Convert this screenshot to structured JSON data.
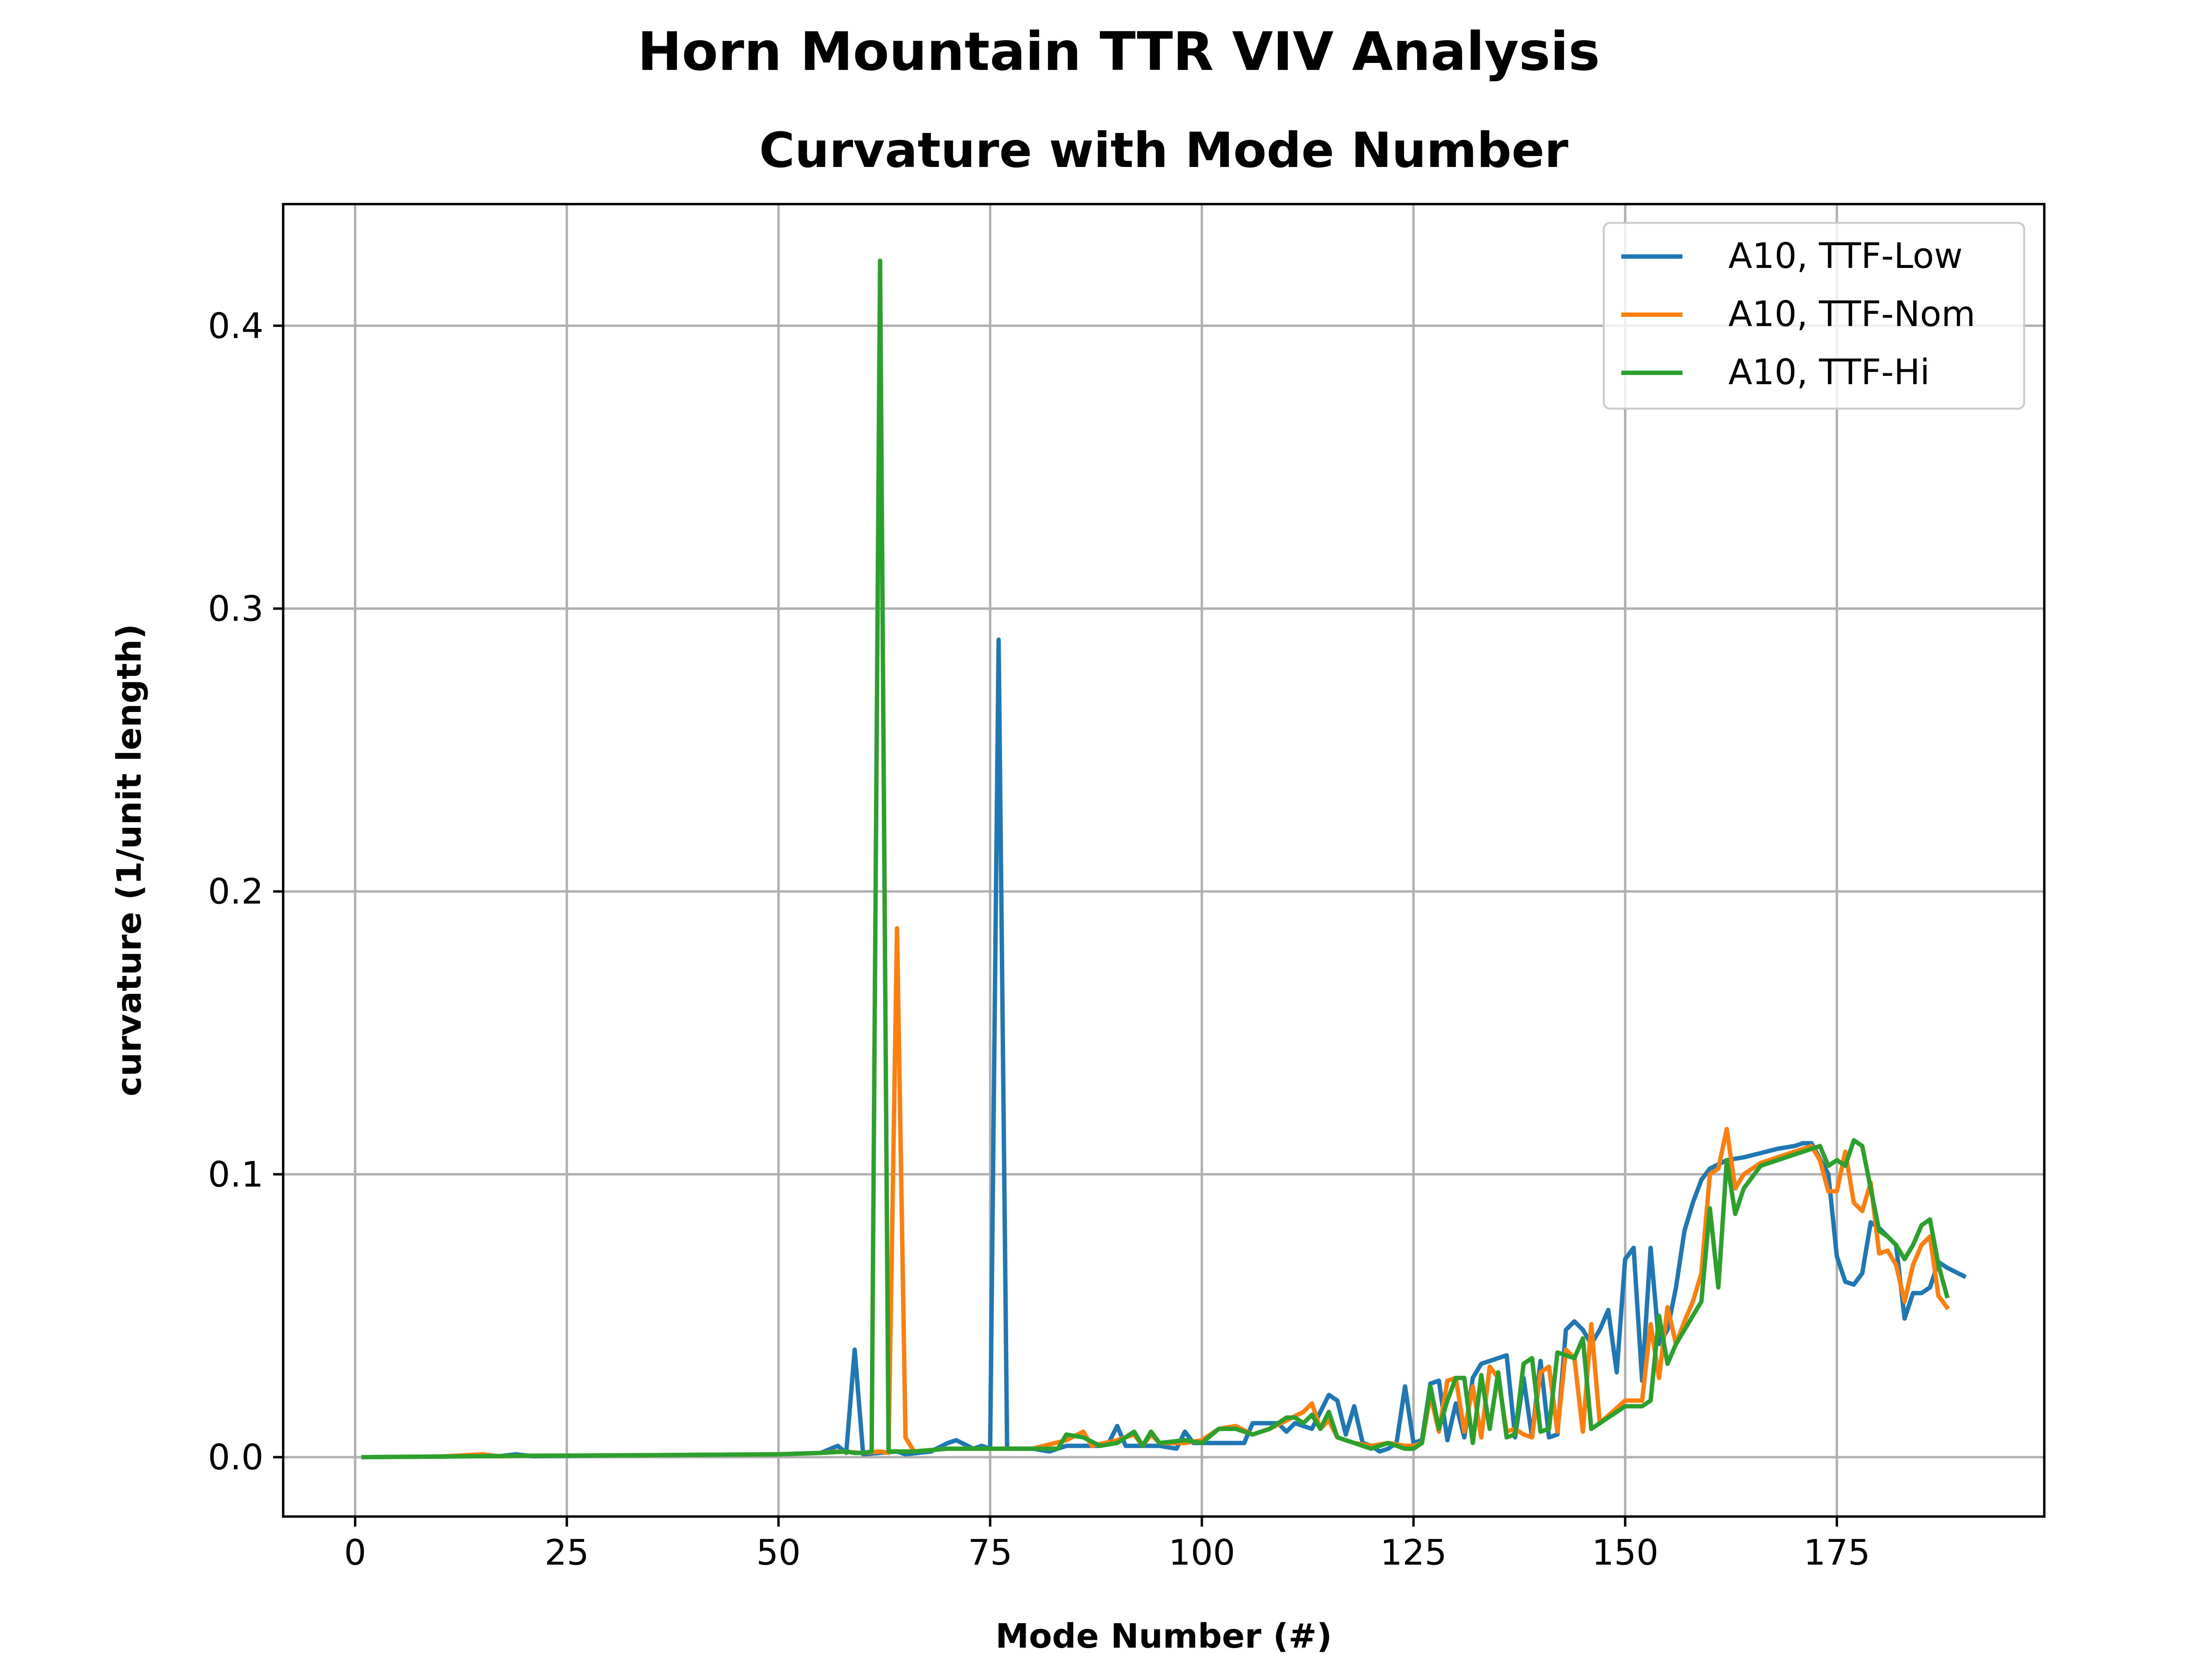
{
  "figure": {
    "suptitle": "Horn Mountain TTR VIV Analysis"
  },
  "chart_data": {
    "type": "line",
    "title": "Curvature with Mode Number",
    "xlabel": "Mode Number (#)",
    "ylabel": "curvature (1/unit length)",
    "xlim": [
      -8.5,
      199.5
    ],
    "ylim": [
      -0.021,
      0.443
    ],
    "xticks": [
      0,
      25,
      50,
      75,
      100,
      125,
      150,
      175
    ],
    "xtick_labels": [
      "0",
      "25",
      "50",
      "75",
      "100",
      "125",
      "150",
      "175"
    ],
    "yticks": [
      0.0,
      0.1,
      0.2,
      0.3,
      0.4
    ],
    "ytick_labels": [
      "0.0",
      "0.1",
      "0.2",
      "0.3",
      "0.4"
    ],
    "grid": true,
    "legend_position": "top-right",
    "series": [
      {
        "name": "A10, TTF-Low",
        "color": "#1f77b4",
        "points": [
          [
            1,
            0.0
          ],
          [
            10,
            0.0002
          ],
          [
            15,
            0.0005
          ],
          [
            17,
            0.0003
          ],
          [
            19,
            0.001
          ],
          [
            21,
            0.0003
          ],
          [
            30,
            0.0006
          ],
          [
            40,
            0.0008
          ],
          [
            50,
            0.001
          ],
          [
            55,
            0.0015
          ],
          [
            57,
            0.004
          ],
          [
            58,
            0.0015
          ],
          [
            59,
            0.038
          ],
          [
            60,
            0.001
          ],
          [
            64,
            0.002
          ],
          [
            65,
            0.001
          ],
          [
            68,
            0.002
          ],
          [
            70,
            0.005
          ],
          [
            71,
            0.006
          ],
          [
            73,
            0.003
          ],
          [
            74,
            0.004
          ],
          [
            75,
            0.003
          ],
          [
            76,
            0.289
          ],
          [
            77,
            0.003
          ],
          [
            80,
            0.003
          ],
          [
            82,
            0.002
          ],
          [
            84,
            0.004
          ],
          [
            86,
            0.004
          ],
          [
            88,
            0.004
          ],
          [
            89,
            0.005
          ],
          [
            90,
            0.011
          ],
          [
            91,
            0.004
          ],
          [
            93,
            0.004
          ],
          [
            95,
            0.004
          ],
          [
            97,
            0.003
          ],
          [
            98,
            0.009
          ],
          [
            99,
            0.005
          ],
          [
            105,
            0.005
          ],
          [
            106,
            0.012
          ],
          [
            109,
            0.012
          ],
          [
            110,
            0.009
          ],
          [
            111,
            0.012
          ],
          [
            113,
            0.01
          ],
          [
            115,
            0.022
          ],
          [
            116,
            0.02
          ],
          [
            117,
            0.008
          ],
          [
            118,
            0.018
          ],
          [
            119,
            0.005
          ],
          [
            120,
            0.004
          ],
          [
            121,
            0.002
          ],
          [
            122,
            0.003
          ],
          [
            123,
            0.005
          ],
          [
            124,
            0.025
          ],
          [
            125,
            0.005
          ],
          [
            126,
            0.006
          ],
          [
            127,
            0.026
          ],
          [
            128,
            0.027
          ],
          [
            129,
            0.006
          ],
          [
            130,
            0.019
          ],
          [
            131,
            0.007
          ],
          [
            132,
            0.028
          ],
          [
            133,
            0.033
          ],
          [
            135,
            0.035
          ],
          [
            136,
            0.036
          ],
          [
            137,
            0.007
          ],
          [
            138,
            0.028
          ],
          [
            139,
            0.007
          ],
          [
            140,
            0.034
          ],
          [
            141,
            0.007
          ],
          [
            142,
            0.008
          ],
          [
            143,
            0.045
          ],
          [
            144,
            0.048
          ],
          [
            145,
            0.045
          ],
          [
            146,
            0.04
          ],
          [
            147,
            0.045
          ],
          [
            148,
            0.052
          ],
          [
            149,
            0.03
          ],
          [
            150,
            0.07
          ],
          [
            151,
            0.074
          ],
          [
            152,
            0.027
          ],
          [
            153,
            0.074
          ],
          [
            154,
            0.04
          ],
          [
            155,
            0.045
          ],
          [
            156,
            0.06
          ],
          [
            157,
            0.08
          ],
          [
            158,
            0.09
          ],
          [
            159,
            0.098
          ],
          [
            160,
            0.102
          ],
          [
            162,
            0.105
          ],
          [
            164,
            0.106
          ],
          [
            168,
            0.109
          ],
          [
            170,
            0.11
          ],
          [
            171,
            0.111
          ],
          [
            172,
            0.111
          ],
          [
            174,
            0.1
          ],
          [
            175,
            0.071
          ],
          [
            176,
            0.062
          ],
          [
            177,
            0.061
          ],
          [
            178,
            0.065
          ],
          [
            179,
            0.083
          ],
          [
            180,
            0.081
          ],
          [
            181,
            0.078
          ],
          [
            182,
            0.075
          ],
          [
            183,
            0.049
          ],
          [
            184,
            0.058
          ],
          [
            185,
            0.058
          ],
          [
            186,
            0.06
          ],
          [
            187,
            0.069
          ],
          [
            188,
            0.067
          ],
          [
            190,
            0.064
          ]
        ]
      },
      {
        "name": "A10, TTF-Nom",
        "color": "#ff7f0e",
        "points": [
          [
            1,
            0.0
          ],
          [
            10,
            0.0002
          ],
          [
            15,
            0.001
          ],
          [
            17,
            0.0003
          ],
          [
            20,
            0.0005
          ],
          [
            30,
            0.0006
          ],
          [
            40,
            0.0008
          ],
          [
            50,
            0.001
          ],
          [
            55,
            0.0015
          ],
          [
            57,
            0.002
          ],
          [
            60,
            0.0015
          ],
          [
            62,
            0.002
          ],
          [
            63,
            0.0015
          ],
          [
            64,
            0.187
          ],
          [
            65,
            0.007
          ],
          [
            66,
            0.002
          ],
          [
            70,
            0.003
          ],
          [
            75,
            0.003
          ],
          [
            80,
            0.003
          ],
          [
            84,
            0.006
          ],
          [
            86,
            0.009
          ],
          [
            87,
            0.004
          ],
          [
            90,
            0.006
          ],
          [
            92,
            0.008
          ],
          [
            93,
            0.004
          ],
          [
            94,
            0.008
          ],
          [
            95,
            0.005
          ],
          [
            98,
            0.005
          ],
          [
            100,
            0.006
          ],
          [
            102,
            0.01
          ],
          [
            104,
            0.011
          ],
          [
            106,
            0.008
          ],
          [
            108,
            0.01
          ],
          [
            110,
            0.013
          ],
          [
            112,
            0.016
          ],
          [
            113,
            0.019
          ],
          [
            114,
            0.01
          ],
          [
            115,
            0.013
          ],
          [
            116,
            0.007
          ],
          [
            118,
            0.005
          ],
          [
            120,
            0.004
          ],
          [
            122,
            0.005
          ],
          [
            124,
            0.004
          ],
          [
            125,
            0.004
          ],
          [
            126,
            0.005
          ],
          [
            127,
            0.022
          ],
          [
            128,
            0.009
          ],
          [
            129,
            0.027
          ],
          [
            130,
            0.028
          ],
          [
            131,
            0.009
          ],
          [
            132,
            0.025
          ],
          [
            133,
            0.007
          ],
          [
            134,
            0.032
          ],
          [
            135,
            0.028
          ],
          [
            136,
            0.009
          ],
          [
            137,
            0.01
          ],
          [
            138,
            0.008
          ],
          [
            139,
            0.007
          ],
          [
            140,
            0.03
          ],
          [
            141,
            0.032
          ],
          [
            142,
            0.009
          ],
          [
            143,
            0.038
          ],
          [
            144,
            0.035
          ],
          [
            145,
            0.009
          ],
          [
            146,
            0.047
          ],
          [
            147,
            0.012
          ],
          [
            150,
            0.02
          ],
          [
            152,
            0.02
          ],
          [
            153,
            0.047
          ],
          [
            154,
            0.028
          ],
          [
            155,
            0.053
          ],
          [
            156,
            0.04
          ],
          [
            157,
            0.048
          ],
          [
            158,
            0.055
          ],
          [
            159,
            0.065
          ],
          [
            160,
            0.1
          ],
          [
            161,
            0.102
          ],
          [
            162,
            0.116
          ],
          [
            163,
            0.095
          ],
          [
            164,
            0.1
          ],
          [
            166,
            0.104
          ],
          [
            168,
            0.106
          ],
          [
            170,
            0.108
          ],
          [
            172,
            0.11
          ],
          [
            173,
            0.105
          ],
          [
            174,
            0.094
          ],
          [
            175,
            0.094
          ],
          [
            176,
            0.108
          ],
          [
            177,
            0.09
          ],
          [
            178,
            0.087
          ],
          [
            179,
            0.097
          ],
          [
            180,
            0.072
          ],
          [
            181,
            0.073
          ],
          [
            182,
            0.068
          ],
          [
            183,
            0.055
          ],
          [
            184,
            0.068
          ],
          [
            185,
            0.075
          ],
          [
            186,
            0.078
          ],
          [
            187,
            0.057
          ],
          [
            188,
            0.053
          ]
        ]
      },
      {
        "name": "A10, TTF-Hi",
        "color": "#2ca02c",
        "points": [
          [
            1,
            0.0
          ],
          [
            10,
            0.0002
          ],
          [
            20,
            0.0005
          ],
          [
            30,
            0.0006
          ],
          [
            40,
            0.0008
          ],
          [
            50,
            0.001
          ],
          [
            55,
            0.0015
          ],
          [
            58,
            0.002
          ],
          [
            59,
            0.0015
          ],
          [
            60,
            0.0015
          ],
          [
            61,
            0.002
          ],
          [
            62,
            0.423
          ],
          [
            63,
            0.002
          ],
          [
            64,
            0.002
          ],
          [
            66,
            0.002
          ],
          [
            70,
            0.003
          ],
          [
            75,
            0.003
          ],
          [
            80,
            0.003
          ],
          [
            83,
            0.003
          ],
          [
            84,
            0.008
          ],
          [
            86,
            0.007
          ],
          [
            88,
            0.004
          ],
          [
            90,
            0.005
          ],
          [
            92,
            0.009
          ],
          [
            93,
            0.004
          ],
          [
            94,
            0.009
          ],
          [
            95,
            0.005
          ],
          [
            98,
            0.006
          ],
          [
            100,
            0.005
          ],
          [
            102,
            0.01
          ],
          [
            104,
            0.01
          ],
          [
            106,
            0.008
          ],
          [
            108,
            0.01
          ],
          [
            110,
            0.014
          ],
          [
            111,
            0.014
          ],
          [
            112,
            0.012
          ],
          [
            113,
            0.015
          ],
          [
            114,
            0.01
          ],
          [
            115,
            0.016
          ],
          [
            116,
            0.007
          ],
          [
            118,
            0.005
          ],
          [
            120,
            0.003
          ],
          [
            122,
            0.005
          ],
          [
            124,
            0.003
          ],
          [
            125,
            0.003
          ],
          [
            126,
            0.005
          ],
          [
            127,
            0.025
          ],
          [
            128,
            0.01
          ],
          [
            129,
            0.02
          ],
          [
            130,
            0.028
          ],
          [
            131,
            0.028
          ],
          [
            132,
            0.005
          ],
          [
            133,
            0.029
          ],
          [
            134,
            0.01
          ],
          [
            135,
            0.03
          ],
          [
            136,
            0.007
          ],
          [
            137,
            0.008
          ],
          [
            138,
            0.033
          ],
          [
            139,
            0.035
          ],
          [
            140,
            0.009
          ],
          [
            141,
            0.01
          ],
          [
            142,
            0.037
          ],
          [
            143,
            0.036
          ],
          [
            144,
            0.035
          ],
          [
            145,
            0.042
          ],
          [
            146,
            0.01
          ],
          [
            150,
            0.018
          ],
          [
            152,
            0.018
          ],
          [
            153,
            0.02
          ],
          [
            154,
            0.05
          ],
          [
            155,
            0.033
          ],
          [
            156,
            0.04
          ],
          [
            158,
            0.05
          ],
          [
            159,
            0.055
          ],
          [
            160,
            0.088
          ],
          [
            161,
            0.06
          ],
          [
            162,
            0.105
          ],
          [
            163,
            0.086
          ],
          [
            164,
            0.095
          ],
          [
            166,
            0.103
          ],
          [
            170,
            0.107
          ],
          [
            173,
            0.11
          ],
          [
            174,
            0.103
          ],
          [
            175,
            0.105
          ],
          [
            176,
            0.103
          ],
          [
            177,
            0.112
          ],
          [
            178,
            0.11
          ],
          [
            179,
            0.095
          ],
          [
            180,
            0.08
          ],
          [
            181,
            0.078
          ],
          [
            182,
            0.075
          ],
          [
            183,
            0.07
          ],
          [
            184,
            0.075
          ],
          [
            185,
            0.082
          ],
          [
            186,
            0.084
          ],
          [
            187,
            0.068
          ],
          [
            188,
            0.057
          ]
        ]
      }
    ]
  }
}
